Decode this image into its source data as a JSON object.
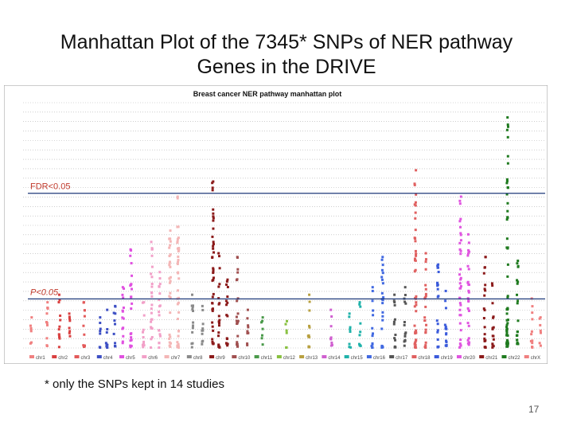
{
  "slide": {
    "title_line1": "Manhattan Plot of the 7345* SNPs of NER pathway",
    "title_line2": "Genes in the DRIVE",
    "footnote": "* only the SNPs kept in 14 studies",
    "page_number": "17"
  },
  "colors": {
    "threshold_label": "#c0392b",
    "threshold_line": "#1f3a7a",
    "grid": "#b0b0b0"
  },
  "chart_data": {
    "type": "scatter",
    "title": "Breast cancer NER pathway manhattan plot",
    "xlabel": "",
    "ylabel": "",
    "ylim": [
      0,
      6.5
    ],
    "grid": true,
    "thresholds": [
      {
        "label": "FDR<0.05",
        "value": 4.1
      },
      {
        "label": "P<0.05",
        "value": 1.3
      }
    ],
    "categories": [
      "chr1",
      "chr2",
      "chr3",
      "chr4",
      "chr5",
      "chr6",
      "chr7",
      "chr8",
      "chr9",
      "chr10",
      "chr11",
      "chr12",
      "chr13",
      "chr14",
      "chr15",
      "chr16",
      "chr17",
      "chr18",
      "chr19",
      "chr20",
      "chr21",
      "chr22",
      "chrX"
    ],
    "series": [
      {
        "chr": "chr1",
        "color": "#f08080",
        "clusters": [
          {
            "pos": 0.1,
            "max": 0.8
          },
          {
            "pos": 0.9,
            "max": 1.2
          }
        ]
      },
      {
        "chr": "chr2",
        "color": "#d94040",
        "clusters": [
          {
            "pos": 0.4,
            "max": 1.4
          },
          {
            "pos": 0.9,
            "max": 0.9
          }
        ]
      },
      {
        "chr": "chr3",
        "color": "#e35a5a",
        "clusters": [
          {
            "pos": 0.5,
            "max": 1.2
          }
        ]
      },
      {
        "chr": "chr4",
        "color": "#3d4fc4",
        "clusters": [
          {
            "pos": 0.2,
            "max": 0.8
          },
          {
            "pos": 0.5,
            "max": 1.0
          },
          {
            "pos": 0.9,
            "max": 1.1
          }
        ]
      },
      {
        "chr": "chr5",
        "color": "#e050e0",
        "clusters": [
          {
            "pos": 0.2,
            "max": 1.6
          },
          {
            "pos": 0.6,
            "max": 2.6
          }
        ]
      },
      {
        "chr": "chr6",
        "color": "#f2a0c8",
        "clusters": [
          {
            "pos": 0.1,
            "max": 1.2
          },
          {
            "pos": 0.5,
            "max": 2.8
          },
          {
            "pos": 0.9,
            "max": 2.0
          }
        ]
      },
      {
        "chr": "chr7",
        "color": "#f4b6b6",
        "clusters": [
          {
            "pos": 0.3,
            "max": 3.1
          },
          {
            "pos": 0.7,
            "max": 4.0
          }
        ]
      },
      {
        "chr": "chr8",
        "color": "#8a8a8a",
        "clusters": [
          {
            "pos": 0.3,
            "max": 1.4
          },
          {
            "pos": 0.8,
            "max": 1.1
          }
        ]
      },
      {
        "chr": "chr9",
        "color": "#8b1a1a",
        "clusters": [
          {
            "pos": 0.2,
            "max": 4.4
          },
          {
            "pos": 0.5,
            "max": 2.5
          },
          {
            "pos": 0.9,
            "max": 1.8
          }
        ]
      },
      {
        "chr": "chr10",
        "color": "#a05050",
        "clusters": [
          {
            "pos": 0.3,
            "max": 2.4
          },
          {
            "pos": 0.8,
            "max": 1.0
          }
        ]
      },
      {
        "chr": "chr11",
        "color": "#4a9a4a",
        "clusters": [
          {
            "pos": 0.4,
            "max": 0.8
          }
        ]
      },
      {
        "chr": "chr12",
        "color": "#88c040",
        "clusters": [
          {
            "pos": 0.5,
            "max": 0.7
          }
        ]
      },
      {
        "chr": "chr13",
        "color": "#b8a040",
        "clusters": [
          {
            "pos": 0.5,
            "max": 1.4
          }
        ]
      },
      {
        "chr": "chr14",
        "color": "#d060d0",
        "clusters": [
          {
            "pos": 0.5,
            "max": 1.0
          }
        ]
      },
      {
        "chr": "chr15",
        "color": "#20b2aa",
        "clusters": [
          {
            "pos": 0.3,
            "max": 0.9
          },
          {
            "pos": 0.8,
            "max": 1.2
          }
        ]
      },
      {
        "chr": "chr16",
        "color": "#4169e1",
        "clusters": [
          {
            "pos": 0.3,
            "max": 1.6
          },
          {
            "pos": 0.8,
            "max": 2.4
          }
        ]
      },
      {
        "chr": "chr17",
        "color": "#555555",
        "clusters": [
          {
            "pos": 0.3,
            "max": 1.4
          },
          {
            "pos": 0.8,
            "max": 1.6
          }
        ]
      },
      {
        "chr": "chr18",
        "color": "#e06060",
        "clusters": [
          {
            "pos": 0.2,
            "max": 4.7
          },
          {
            "pos": 0.7,
            "max": 2.5
          }
        ]
      },
      {
        "chr": "chr19",
        "color": "#3b5bdb",
        "clusters": [
          {
            "pos": 0.2,
            "max": 2.2
          },
          {
            "pos": 0.6,
            "max": 1.5
          }
        ]
      },
      {
        "chr": "chr20",
        "color": "#e055e0",
        "clusters": [
          {
            "pos": 0.2,
            "max": 4.0
          },
          {
            "pos": 0.6,
            "max": 3.0
          }
        ]
      },
      {
        "chr": "chr21",
        "color": "#8b1a1a",
        "clusters": [
          {
            "pos": 0.3,
            "max": 2.4
          },
          {
            "pos": 0.7,
            "max": 1.7
          }
        ]
      },
      {
        "chr": "chr22",
        "color": "#1f7a1f",
        "clusters": [
          {
            "pos": 0.3,
            "max": 6.1
          },
          {
            "pos": 0.8,
            "max": 2.3
          }
        ]
      },
      {
        "chr": "chrX",
        "color": "#f08080",
        "clusters": [
          {
            "pos": 0.4,
            "max": 1.3
          },
          {
            "pos": 0.8,
            "max": 0.8
          }
        ]
      }
    ]
  }
}
